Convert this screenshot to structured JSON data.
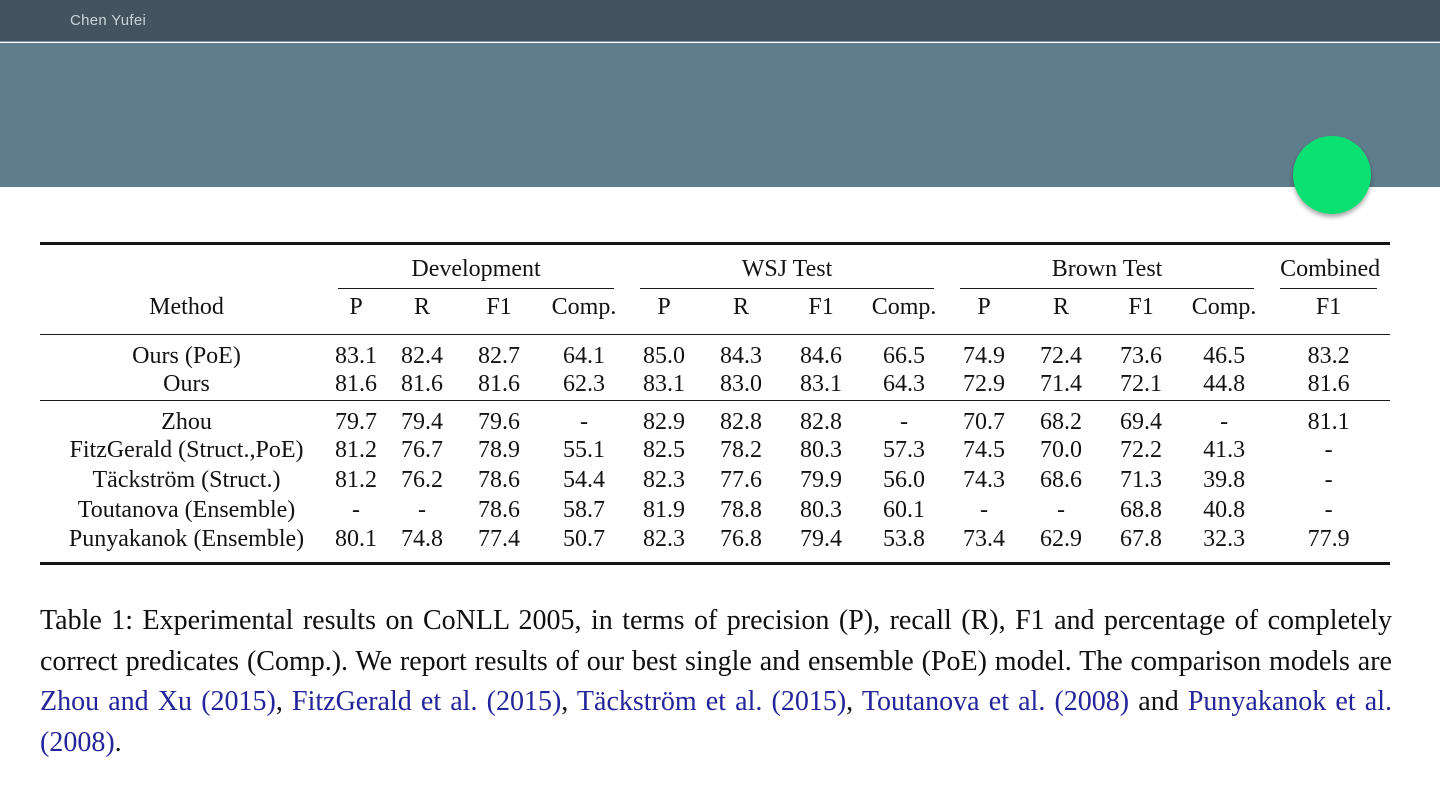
{
  "topbar": {
    "username": "Chen Yufei"
  },
  "colors": {
    "topbar_bg": "#45535e",
    "band_bg": "#5f7d8c",
    "pointer_green": "#0be172",
    "link_blue": "#24249b"
  },
  "pointer": {
    "shape": "green-circle"
  },
  "table": {
    "method_header": "Method",
    "groups": [
      {
        "label": "Development",
        "span": 4
      },
      {
        "label": "WSJ Test",
        "span": 4
      },
      {
        "label": "Brown Test",
        "span": 4
      },
      {
        "label": "Combined",
        "span": 1
      }
    ],
    "sub_headers": [
      "P",
      "R",
      "F1",
      "Comp.",
      "P",
      "R",
      "F1",
      "Comp.",
      "P",
      "R",
      "F1",
      "Comp.",
      "F1"
    ],
    "row_groups": [
      {
        "rows": [
          {
            "method": "Ours (PoE)",
            "bold_values": true,
            "values": [
              "83.1",
              "82.4",
              "82.7",
              "64.1",
              "85.0",
              "84.3",
              "84.6",
              "66.5",
              "74.9",
              "72.4",
              "73.6",
              "46.5",
              "83.2"
            ]
          },
          {
            "method": "Ours",
            "bold_values": false,
            "values": [
              "81.6",
              "81.6",
              "81.6",
              "62.3",
              "83.1",
              "83.0",
              "83.1",
              "64.3",
              "72.9",
              "71.4",
              "72.1",
              "44.8",
              "81.6"
            ]
          }
        ]
      },
      {
        "rows": [
          {
            "method": "Zhou",
            "bold_values": false,
            "values": [
              "79.7",
              "79.4",
              "79.6",
              "-",
              "82.9",
              "82.8",
              "82.8",
              "-",
              "70.7",
              "68.2",
              "69.4",
              "-",
              "81.1"
            ]
          },
          {
            "method": "FitzGerald (Struct.,PoE)",
            "bold_values": false,
            "values": [
              "81.2",
              "76.7",
              "78.9",
              "55.1",
              "82.5",
              "78.2",
              "80.3",
              "57.3",
              "74.5",
              "70.0",
              "72.2",
              "41.3",
              "-"
            ]
          },
          {
            "method": "Täckström (Struct.)",
            "bold_values": false,
            "values": [
              "81.2",
              "76.2",
              "78.6",
              "54.4",
              "82.3",
              "77.6",
              "79.9",
              "56.0",
              "74.3",
              "68.6",
              "71.3",
              "39.8",
              "-"
            ]
          },
          {
            "method": "Toutanova (Ensemble)",
            "bold_values": false,
            "values": [
              "-",
              "-",
              "78.6",
              "58.7",
              "81.9",
              "78.8",
              "80.3",
              "60.1",
              "-",
              "-",
              "68.8",
              "40.8",
              "-"
            ]
          },
          {
            "method": "Punyakanok (Ensemble)",
            "bold_values": false,
            "values": [
              "80.1",
              "74.8",
              "77.4",
              "50.7",
              "82.3",
              "76.8",
              "79.4",
              "53.8",
              "73.4",
              "62.9",
              "67.8",
              "32.3",
              "77.9"
            ]
          }
        ]
      }
    ]
  },
  "caption": {
    "segments": [
      {
        "text": "Table 1: Experimental results on CoNLL 2005, in terms of precision (P), recall (R), F1 and percentage of completely correct predicates (Comp.). We report results of our best single and ensemble (PoE) model. The comparison models are ",
        "link": false
      },
      {
        "text": "Zhou and Xu (2015)",
        "link": true
      },
      {
        "text": ", ",
        "link": false
      },
      {
        "text": "FitzGerald et al. (2015)",
        "link": true
      },
      {
        "text": ", ",
        "link": false
      },
      {
        "text": "Täckström et al. (2015)",
        "link": true
      },
      {
        "text": ", ",
        "link": false
      },
      {
        "text": "Toutanova et al. (2008)",
        "link": true
      },
      {
        "text": " and ",
        "link": false
      },
      {
        "text": "Punyakanok et al. (2008)",
        "link": true
      },
      {
        "text": ".",
        "link": false
      }
    ]
  }
}
